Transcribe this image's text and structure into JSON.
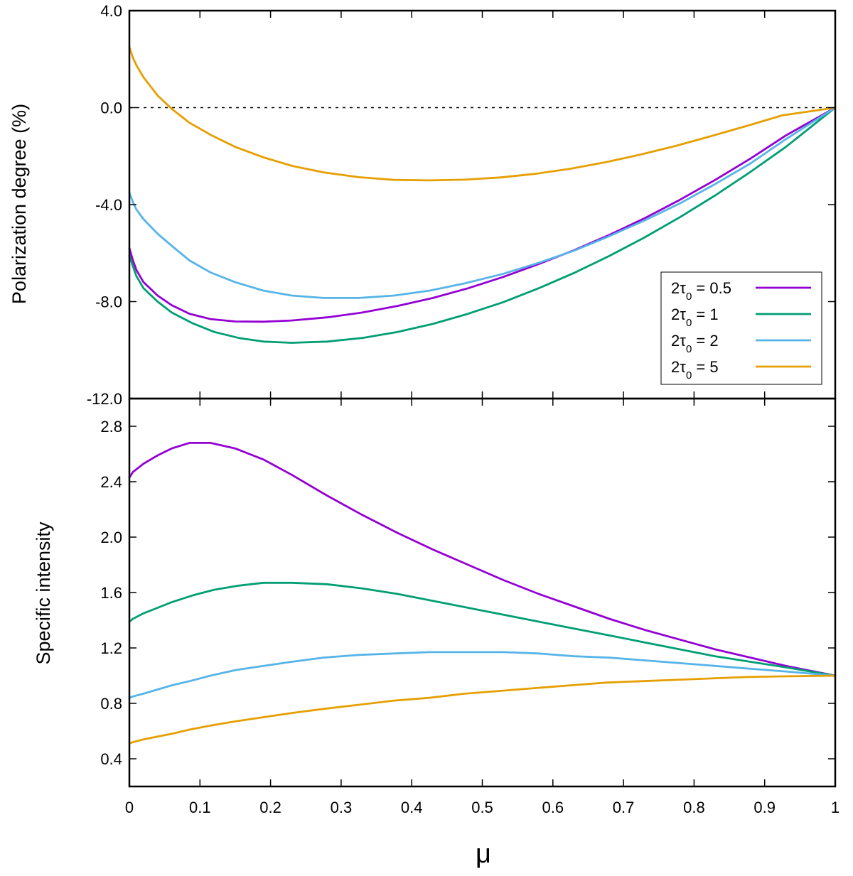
{
  "chart_data": [
    {
      "panel": "top",
      "type": "line",
      "xlabel": "",
      "ylabel": "Polarization degree (%)",
      "xlim": [
        0,
        1
      ],
      "ylim": [
        -12,
        4
      ],
      "yticks": [
        4,
        0,
        -4,
        -8,
        -12
      ],
      "ytick_labels": [
        "4.0",
        "0.0",
        "-4.0",
        "-8.0",
        "-12.0"
      ],
      "reference_line": 0,
      "legend_position": "right",
      "series": [
        {
          "name": "2τ0 = 0.5",
          "label_main": "2τ",
          "label_sub": "0",
          "label_tail": " = 0.5",
          "color": "#9400d3",
          "x": [
            0,
            0.005,
            0.01,
            0.02,
            0.04,
            0.06,
            0.085,
            0.115,
            0.15,
            0.19,
            0.23,
            0.28,
            0.33,
            0.38,
            0.43,
            0.48,
            0.53,
            0.58,
            0.63,
            0.68,
            0.73,
            0.78,
            0.83,
            0.88,
            0.93,
            1.0
          ],
          "y": [
            -5.8,
            -6.3,
            -6.7,
            -7.2,
            -7.75,
            -8.15,
            -8.5,
            -8.72,
            -8.82,
            -8.83,
            -8.78,
            -8.65,
            -8.45,
            -8.18,
            -7.85,
            -7.45,
            -6.98,
            -6.45,
            -5.88,
            -5.25,
            -4.56,
            -3.8,
            -2.98,
            -2.1,
            -1.15,
            0.0
          ]
        },
        {
          "name": "2τ0 = 1",
          "label_main": "2τ",
          "label_sub": "0",
          "label_tail": " = 1",
          "color": "#009e73",
          "x": [
            0,
            0.005,
            0.01,
            0.02,
            0.04,
            0.06,
            0.09,
            0.12,
            0.155,
            0.19,
            0.23,
            0.28,
            0.33,
            0.38,
            0.43,
            0.48,
            0.53,
            0.58,
            0.63,
            0.68,
            0.73,
            0.78,
            0.83,
            0.88,
            0.93,
            1.0
          ],
          "y": [
            -6.1,
            -6.55,
            -6.95,
            -7.45,
            -8.0,
            -8.45,
            -8.9,
            -9.25,
            -9.5,
            -9.65,
            -9.7,
            -9.65,
            -9.5,
            -9.25,
            -8.92,
            -8.5,
            -8.02,
            -7.45,
            -6.82,
            -6.12,
            -5.35,
            -4.52,
            -3.62,
            -2.65,
            -1.62,
            0.0
          ]
        },
        {
          "name": "2τ0 = 2",
          "label_main": "2τ",
          "label_sub": "0",
          "label_tail": " = 2",
          "color": "#56b4e9",
          "x": [
            0,
            0.005,
            0.01,
            0.02,
            0.04,
            0.06,
            0.085,
            0.115,
            0.15,
            0.19,
            0.23,
            0.275,
            0.325,
            0.375,
            0.425,
            0.475,
            0.53,
            0.58,
            0.63,
            0.68,
            0.73,
            0.78,
            0.83,
            0.88,
            0.93,
            1.0
          ],
          "y": [
            -3.5,
            -3.9,
            -4.2,
            -4.6,
            -5.2,
            -5.7,
            -6.3,
            -6.8,
            -7.2,
            -7.55,
            -7.75,
            -7.85,
            -7.85,
            -7.75,
            -7.55,
            -7.25,
            -6.85,
            -6.4,
            -5.9,
            -5.3,
            -4.65,
            -3.95,
            -3.15,
            -2.3,
            -1.3,
            0.0
          ]
        },
        {
          "name": "2τ0 = 5",
          "label_main": "2τ",
          "label_sub": "0",
          "label_tail": " = 5",
          "color": "#e69f00",
          "x": [
            0,
            0.005,
            0.01,
            0.02,
            0.04,
            0.06,
            0.085,
            0.115,
            0.15,
            0.19,
            0.23,
            0.275,
            0.325,
            0.375,
            0.425,
            0.475,
            0.525,
            0.575,
            0.625,
            0.675,
            0.725,
            0.775,
            0.825,
            0.875,
            0.925,
            1.0
          ],
          "y": [
            2.5,
            2.05,
            1.75,
            1.25,
            0.5,
            -0.05,
            -0.62,
            -1.12,
            -1.62,
            -2.05,
            -2.4,
            -2.67,
            -2.87,
            -2.98,
            -3.0,
            -2.97,
            -2.88,
            -2.73,
            -2.52,
            -2.25,
            -1.93,
            -1.57,
            -1.17,
            -0.75,
            -0.32,
            0.0
          ]
        }
      ]
    },
    {
      "panel": "bottom",
      "type": "line",
      "xlabel": "μ",
      "ylabel": "Specific intensity",
      "xlim": [
        0,
        1
      ],
      "ylim": [
        0.2,
        3.0
      ],
      "yticks": [
        0.4,
        0.8,
        1.2,
        1.6,
        2.0,
        2.4,
        2.8
      ],
      "ytick_labels": [
        "0.4",
        "0.8",
        "1.2",
        "1.6",
        "2.0",
        "2.4",
        "2.8"
      ],
      "xticks": [
        0,
        0.1,
        0.2,
        0.3,
        0.4,
        0.5,
        0.6,
        0.7,
        0.8,
        0.9,
        1
      ],
      "xtick_labels": [
        "0",
        "0.1",
        "0.2",
        "0.3",
        "0.4",
        "0.5",
        "0.6",
        "0.7",
        "0.8",
        "0.9",
        "1"
      ],
      "series": [
        {
          "name": "2τ0 = 0.5",
          "color": "#9400d3",
          "x": [
            0,
            0.005,
            0.02,
            0.04,
            0.06,
            0.085,
            0.115,
            0.15,
            0.19,
            0.23,
            0.28,
            0.33,
            0.38,
            0.43,
            0.48,
            0.53,
            0.58,
            0.63,
            0.68,
            0.73,
            0.78,
            0.83,
            0.88,
            0.93,
            1.0
          ],
          "y": [
            2.43,
            2.47,
            2.53,
            2.59,
            2.64,
            2.68,
            2.68,
            2.64,
            2.56,
            2.45,
            2.3,
            2.16,
            2.03,
            1.91,
            1.8,
            1.69,
            1.59,
            1.5,
            1.41,
            1.33,
            1.26,
            1.19,
            1.13,
            1.07,
            1.0
          ]
        },
        {
          "name": "2τ0 = 1",
          "color": "#009e73",
          "x": [
            0,
            0.005,
            0.02,
            0.04,
            0.06,
            0.09,
            0.12,
            0.155,
            0.19,
            0.23,
            0.28,
            0.33,
            0.38,
            0.43,
            0.48,
            0.53,
            0.58,
            0.63,
            0.68,
            0.73,
            0.78,
            0.83,
            0.88,
            0.93,
            1.0
          ],
          "y": [
            1.39,
            1.41,
            1.45,
            1.49,
            1.53,
            1.58,
            1.62,
            1.65,
            1.67,
            1.67,
            1.66,
            1.63,
            1.59,
            1.54,
            1.49,
            1.44,
            1.39,
            1.34,
            1.29,
            1.24,
            1.19,
            1.14,
            1.1,
            1.06,
            1.0
          ]
        },
        {
          "name": "2τ0 = 2",
          "color": "#56b4e9",
          "x": [
            0,
            0.005,
            0.02,
            0.04,
            0.06,
            0.085,
            0.115,
            0.15,
            0.19,
            0.23,
            0.275,
            0.325,
            0.375,
            0.425,
            0.475,
            0.53,
            0.58,
            0.63,
            0.68,
            0.73,
            0.78,
            0.83,
            0.88,
            0.93,
            1.0
          ],
          "y": [
            0.84,
            0.85,
            0.87,
            0.9,
            0.93,
            0.96,
            1.0,
            1.04,
            1.07,
            1.1,
            1.13,
            1.15,
            1.16,
            1.17,
            1.17,
            1.17,
            1.16,
            1.14,
            1.13,
            1.11,
            1.09,
            1.07,
            1.05,
            1.03,
            1.0
          ]
        },
        {
          "name": "2τ0 = 5",
          "color": "#e69f00",
          "x": [
            0,
            0.005,
            0.02,
            0.04,
            0.06,
            0.085,
            0.115,
            0.15,
            0.19,
            0.23,
            0.275,
            0.325,
            0.375,
            0.425,
            0.475,
            0.525,
            0.575,
            0.625,
            0.675,
            0.725,
            0.775,
            0.825,
            0.875,
            0.925,
            1.0
          ],
          "y": [
            0.51,
            0.52,
            0.54,
            0.56,
            0.58,
            0.61,
            0.64,
            0.67,
            0.7,
            0.73,
            0.76,
            0.79,
            0.82,
            0.84,
            0.87,
            0.89,
            0.91,
            0.93,
            0.95,
            0.96,
            0.97,
            0.98,
            0.99,
            0.995,
            1.0
          ]
        }
      ]
    }
  ]
}
